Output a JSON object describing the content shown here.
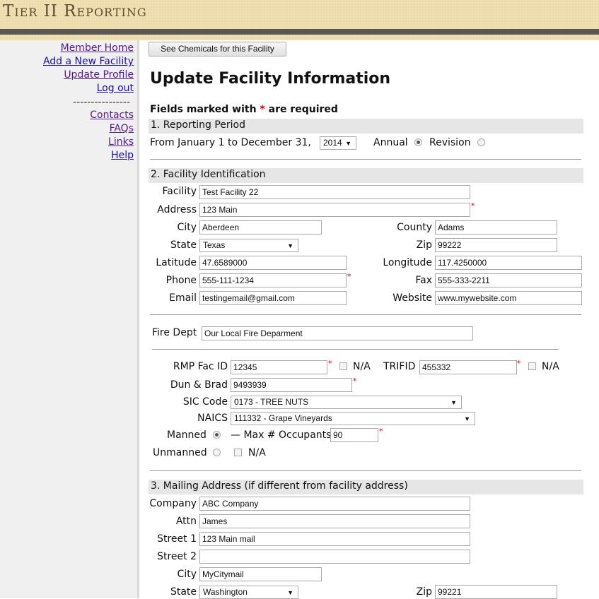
{
  "header": {
    "title": "Tier II Reporting"
  },
  "sidebar": {
    "items": [
      {
        "label": "Member Home"
      },
      {
        "label": "Add a New Facility"
      },
      {
        "label": "Update Profile"
      },
      {
        "label": "Log out"
      },
      {
        "label": "Contacts"
      },
      {
        "label": "FAQs"
      },
      {
        "label": "Links"
      },
      {
        "label": "Help"
      }
    ],
    "separator": "----------------"
  },
  "main": {
    "see_chemicals_label": "See Chemicals for this Facility",
    "title": "Update Facility Information",
    "required_note_pre": "Fields marked with ",
    "required_star": "*",
    "required_note_post": " are required",
    "s1": {
      "title": "1. Reporting Period",
      "from_text": "From January 1 to December 31,",
      "year": "2014",
      "annual": "Annual",
      "revision": "Revision",
      "annual_selected": true
    },
    "s2": {
      "title": "2. Facility Identification",
      "facility_label": "Facility",
      "facility": "Test Facility 22",
      "address_label": "Address",
      "address": "123 Main",
      "city_label": "City",
      "city": "Aberdeen",
      "county_label": "County",
      "county": "Adams",
      "state_label": "State",
      "state": "Texas",
      "zip_label": "Zip",
      "zip": "99222",
      "lat_label": "Latitude",
      "lat": "47.6589000",
      "lon_label": "Longitude",
      "lon": "117.4250000",
      "phone_label": "Phone",
      "phone": "555-111-1234",
      "fax_label": "Fax",
      "fax": "555-333-2211",
      "email_label": "Email",
      "email": "testingemail@gmail.com",
      "website_label": "Website",
      "website": "www.mywebsite.com",
      "fire_label": "Fire Dept",
      "fire": "Our Local Fire Deparment",
      "rmp_label": "RMP Fac ID",
      "rmp": "12345",
      "na": "N/A",
      "trifid_label": "TRIFID",
      "trifid": "455332",
      "dun_label": "Dun & Brad",
      "dun": "9493939",
      "sic_label": "SIC Code",
      "sic": "0173 - TREE NUTS",
      "naics_label": "NAICS",
      "naics": "111332 - Grape Vineyards",
      "manned_label": "Manned",
      "max_label": "— Max # Occupants",
      "max": "90",
      "unmanned_label": "Unmanned",
      "manned_selected": true
    },
    "s3": {
      "title": "3. Mailing Address (if different from facility address)",
      "company_label": "Company",
      "company": "ABC Company",
      "attn_label": "Attn",
      "attn": "James",
      "street1_label": "Street 1",
      "street1": "123 Main mail",
      "street2_label": "Street 2",
      "street2": "",
      "city_label": "City",
      "city": "MyCitymail",
      "state_label": "State",
      "state": "Washington",
      "zip_label": "Zip",
      "zip": "99221"
    }
  }
}
